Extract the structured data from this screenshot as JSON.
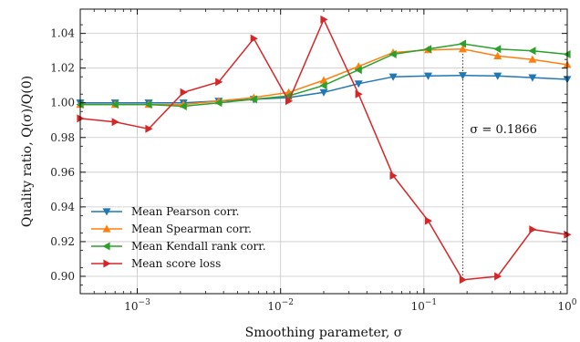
{
  "chart_data": {
    "type": "line",
    "xlabel": "Smoothing parameter, σ",
    "ylabel": "Quality ratio, Q(σ)/Q(0)",
    "xscale": "log",
    "xlim": [
      0.0004,
      1
    ],
    "ylim": [
      0.89,
      1.054
    ],
    "grid": true,
    "legend_position": "lower-left",
    "x_ticks": [
      {
        "value": 0.001,
        "base": "10",
        "exp": "−3"
      },
      {
        "value": 0.01,
        "base": "10",
        "exp": "−2"
      },
      {
        "value": 0.1,
        "base": "10",
        "exp": "−1"
      },
      {
        "value": 1,
        "base": "10",
        "exp": "0"
      }
    ],
    "y_ticks": [
      {
        "value": 0.9,
        "label": "0.90"
      },
      {
        "value": 0.92,
        "label": "0.92"
      },
      {
        "value": 0.94,
        "label": "0.94"
      },
      {
        "value": 0.96,
        "label": "0.96"
      },
      {
        "value": 0.98,
        "label": "0.98"
      },
      {
        "value": 1.0,
        "label": "1.00"
      },
      {
        "value": 1.02,
        "label": "1.02"
      },
      {
        "value": 1.04,
        "label": "1.04"
      }
    ],
    "x": [
      0.0004,
      0.0007,
      0.0012,
      0.0021,
      0.0037,
      0.0065,
      0.0114,
      0.02,
      0.035,
      0.061,
      0.107,
      0.1866,
      0.327,
      0.572,
      1.0
    ],
    "series": [
      {
        "name": "Mean Pearson corr.",
        "color": "#1f77b4",
        "marker": "triangle-down",
        "values": [
          1.0,
          1.0,
          1.0,
          1.0,
          1.001,
          1.002,
          1.003,
          1.006,
          1.011,
          1.015,
          1.0155,
          1.0158,
          1.0155,
          1.0145,
          1.0135
        ]
      },
      {
        "name": "Mean Spearman corr.",
        "color": "#ff7f0e",
        "marker": "triangle-up",
        "values": [
          0.999,
          0.999,
          0.999,
          0.999,
          1.001,
          1.003,
          1.006,
          1.013,
          1.021,
          1.029,
          1.0305,
          1.031,
          1.027,
          1.025,
          1.022
        ]
      },
      {
        "name": "Mean Kendall rank corr.",
        "color": "#2ca02c",
        "marker": "triangle-left",
        "values": [
          0.999,
          0.999,
          0.999,
          0.998,
          1.0,
          1.002,
          1.004,
          1.01,
          1.019,
          1.028,
          1.031,
          1.034,
          1.031,
          1.03,
          1.028
        ]
      },
      {
        "name": "Mean score loss",
        "color": "#d62728",
        "marker": "triangle-right",
        "values": [
          0.991,
          0.989,
          0.985,
          1.006,
          1.012,
          1.037,
          1.001,
          1.048,
          1.005,
          0.958,
          0.932,
          0.898,
          0.9,
          0.927,
          0.924
        ]
      }
    ],
    "annotations": [
      {
        "text": "σ = 0.1866",
        "x": 0.1866
      }
    ]
  }
}
